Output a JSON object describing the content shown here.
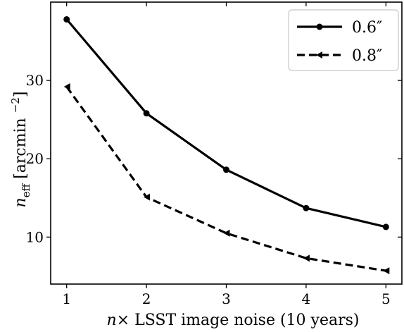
{
  "chart_data": {
    "type": "line",
    "x": [
      1,
      2,
      3,
      4,
      5
    ],
    "xlabel": "n× LSST image noise (10 years)",
    "ylabel": "n_eff [arcmin^−2]",
    "xlim": [
      0.8,
      5.2
    ],
    "ylim": [
      4,
      40
    ],
    "xticks": [
      1,
      2,
      3,
      4,
      5
    ],
    "yticks": [
      10,
      20,
      30
    ],
    "grid": false,
    "legend_position": "top-right",
    "series": [
      {
        "name": "0.6″",
        "values": [
          37.8,
          25.8,
          18.6,
          13.7,
          11.3
        ],
        "style": "solid",
        "marker": "circle",
        "color": "#000000"
      },
      {
        "name": "0.8″",
        "values": [
          29.2,
          15.1,
          10.5,
          7.3,
          5.7
        ],
        "style": "dashed",
        "marker": "triangle-left",
        "color": "#000000"
      }
    ]
  }
}
